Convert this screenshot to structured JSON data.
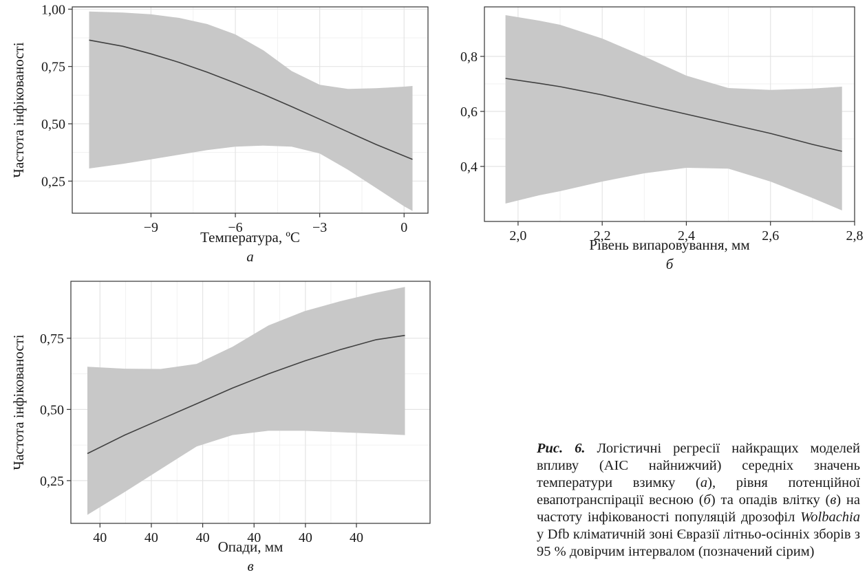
{
  "chart_data": [
    {
      "type": "line",
      "panel": "а",
      "xlabel": "Температура, ºC",
      "ylabel": "Частота інфікованості",
      "xlim": [
        -11.8,
        0.85
      ],
      "ylim": [
        0.11,
        1.01
      ],
      "xticks": [
        -9,
        -6,
        -3,
        0
      ],
      "xtick_labels": [
        "−9",
        "−6",
        "−3",
        "0"
      ],
      "yticks": [
        0.25,
        0.5,
        0.75,
        1.0
      ],
      "ytick_labels": [
        "0,25",
        "0,50",
        "0,75",
        "1,00"
      ],
      "grid": true,
      "band_color": "#c8c8c8",
      "line_color": "#404040",
      "series": [
        {
          "x": [
            -11.2,
            -10,
            -9,
            -8,
            -7,
            -6,
            -5,
            -4,
            -3,
            -2,
            -1,
            0,
            0.3
          ],
          "y": [
            0.865,
            0.838,
            0.805,
            0.768,
            0.725,
            0.678,
            0.628,
            0.575,
            0.52,
            0.465,
            0.41,
            0.36,
            0.345
          ],
          "lower": [
            0.305,
            0.325,
            0.345,
            0.365,
            0.385,
            0.4,
            0.405,
            0.4,
            0.37,
            0.3,
            0.22,
            0.14,
            0.12
          ],
          "upper": [
            0.99,
            0.985,
            0.978,
            0.962,
            0.935,
            0.89,
            0.82,
            0.73,
            0.67,
            0.652,
            0.655,
            0.662,
            0.665
          ]
        }
      ]
    },
    {
      "type": "line",
      "panel": "б",
      "xlabel": "Рівень випаровування, мм",
      "ylabel": "",
      "xlim": [
        1.92,
        2.8
      ],
      "ylim": [
        0.2,
        0.98
      ],
      "xticks": [
        2.0,
        2.2,
        2.4,
        2.6,
        2.8
      ],
      "xtick_labels": [
        "2,0",
        "2,2",
        "2,4",
        "2,6",
        "2,8"
      ],
      "yticks": [
        0.4,
        0.6,
        0.8
      ],
      "ytick_labels": [
        "0,4",
        "0,6",
        "0,8"
      ],
      "grid": true,
      "band_color": "#c8c8c8",
      "line_color": "#404040",
      "series": [
        {
          "x": [
            1.97,
            2.05,
            2.1,
            2.2,
            2.3,
            2.4,
            2.5,
            2.6,
            2.7,
            2.77
          ],
          "y": [
            0.72,
            0.702,
            0.69,
            0.66,
            0.625,
            0.59,
            0.555,
            0.52,
            0.48,
            0.455
          ],
          "lower": [
            0.265,
            0.295,
            0.31,
            0.345,
            0.375,
            0.395,
            0.392,
            0.345,
            0.285,
            0.24
          ],
          "upper": [
            0.95,
            0.93,
            0.915,
            0.865,
            0.8,
            0.73,
            0.685,
            0.678,
            0.683,
            0.69
          ]
        }
      ]
    },
    {
      "type": "line",
      "panel": "в",
      "xlabel": "Опади, мм",
      "ylabel": "Частота інфікованості",
      "xlim": [
        0,
        1
      ],
      "ylim": [
        0.1,
        0.95
      ],
      "xticks": [
        0.081,
        0.224,
        0.367,
        0.51,
        0.653,
        0.795
      ],
      "xtick_labels": [
        "40",
        "40",
        "40",
        "40",
        "40",
        "40"
      ],
      "yticks": [
        0.25,
        0.5,
        0.75
      ],
      "ytick_labels": [
        "0,25",
        "0,50",
        "0,75"
      ],
      "grid": true,
      "band_color": "#c8c8c8",
      "line_color": "#404040",
      "series": [
        {
          "x": [
            0.046,
            0.15,
            0.25,
            0.35,
            0.45,
            0.55,
            0.65,
            0.75,
            0.85,
            0.93
          ],
          "y": [
            0.345,
            0.41,
            0.465,
            0.52,
            0.575,
            0.625,
            0.67,
            0.71,
            0.745,
            0.76
          ],
          "lower": [
            0.13,
            0.21,
            0.29,
            0.37,
            0.41,
            0.425,
            0.425,
            0.42,
            0.415,
            0.41
          ],
          "upper": [
            0.65,
            0.643,
            0.642,
            0.66,
            0.72,
            0.795,
            0.845,
            0.88,
            0.91,
            0.93
          ]
        }
      ]
    }
  ],
  "panels": {
    "a": {
      "letter": "а"
    },
    "b": {
      "letter": "б"
    },
    "c": {
      "letter": "в"
    }
  },
  "caption": {
    "label": "Рис. 6.",
    "part1": " Логістичні регресії найкращих моделей впливу (AIC найнижчий) середніх значень температури взимку (",
    "a": "а",
    "part2": "), рівня потенційної евапотранспірації весною (",
    "b": "б",
    "part3": ") та опадів влітку (",
    "c": "в",
    "part4": ") на частоту інфікованості популяцій дрозофіл ",
    "genus": "Wolbachia",
    "part5": " у Dfb кліматичній зоні Євразії літньо-осінніх зборів з 95 % довірчим інтервалом (позначений сірим)"
  }
}
